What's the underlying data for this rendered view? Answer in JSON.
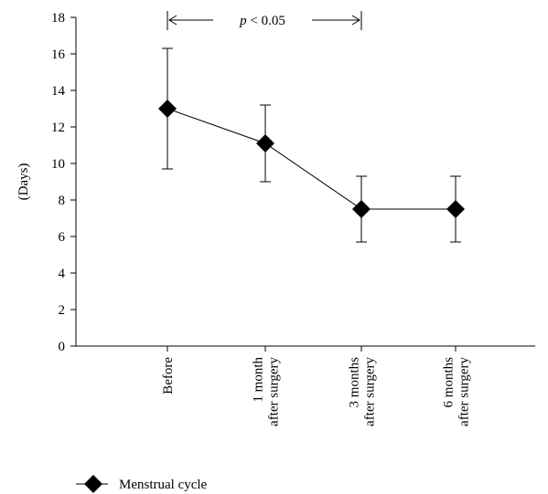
{
  "chart_data": {
    "type": "line",
    "ylabel": "(Days)",
    "ylim": [
      0,
      18
    ],
    "yticks": [
      "0",
      "2",
      "4",
      "6",
      "8",
      "10",
      "12",
      "14",
      "16",
      "18"
    ],
    "categories": [
      [
        "Before"
      ],
      [
        "1 month",
        "after surgery"
      ],
      [
        "3 months",
        "after surgery"
      ],
      [
        "6 months",
        "after surgery"
      ]
    ],
    "series": [
      {
        "name": "Menstrual cycle",
        "values": [
          13.0,
          11.1,
          7.5,
          7.5
        ],
        "error_upper": [
          16.3,
          13.2,
          9.3,
          9.3
        ],
        "error_lower": [
          9.7,
          9.0,
          5.7,
          5.7
        ],
        "color": "#000000",
        "marker": "diamond"
      }
    ],
    "annotation": {
      "italic": "p",
      "text": " < 0.05",
      "from_category": 0,
      "to_category": 2
    },
    "legend": "bottom-left",
    "grid": false
  }
}
